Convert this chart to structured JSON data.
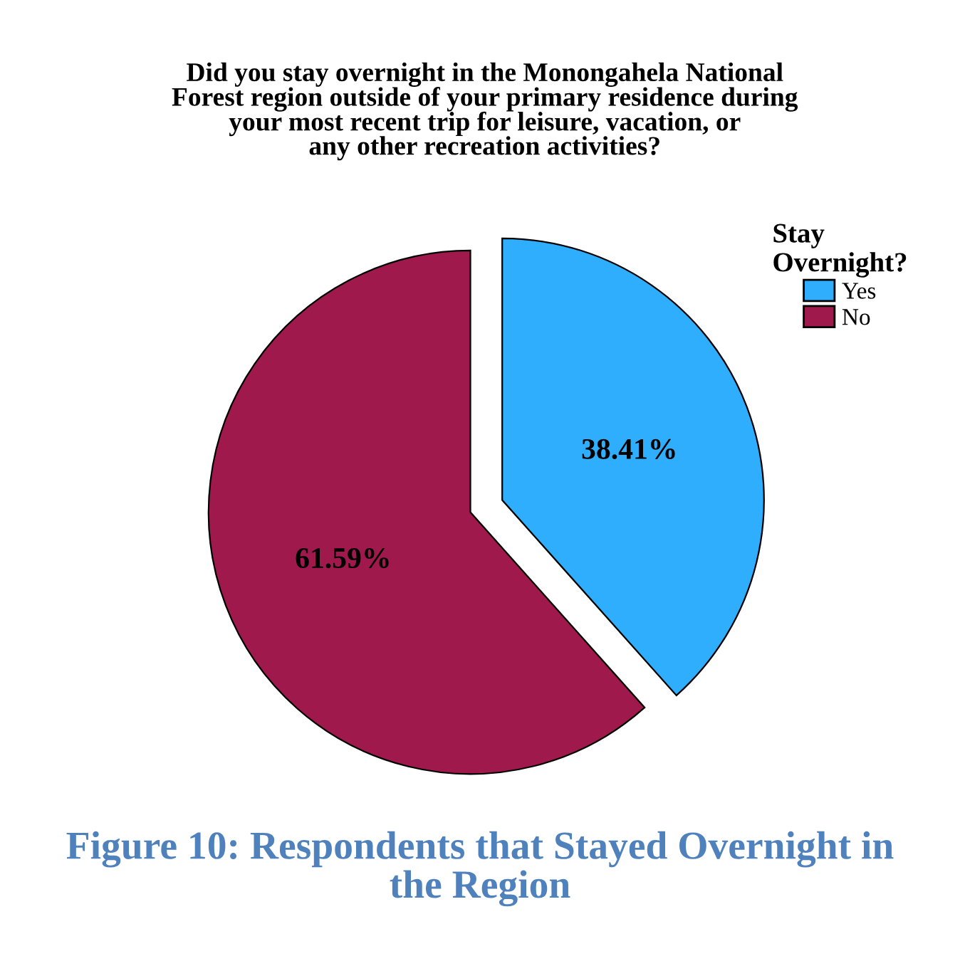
{
  "chart_data": {
    "type": "pie",
    "title": "Did you stay overnight in the Monongahela National\nForest region outside of your primary residence during\nyour most recent trip for leisure, vacation, or\nany other recreation activities?",
    "categories": [
      "Yes",
      "No"
    ],
    "values": [
      38.41,
      61.59
    ],
    "value_labels": [
      "38.41%",
      "61.59%"
    ],
    "colors": [
      "#2eaefc",
      "#a0194c"
    ],
    "legend_title": "Stay Overnight?",
    "legend": "top right",
    "annotations": [
      "Figure 10: Respondents that Stayed Overnight in\nthe Region"
    ]
  }
}
